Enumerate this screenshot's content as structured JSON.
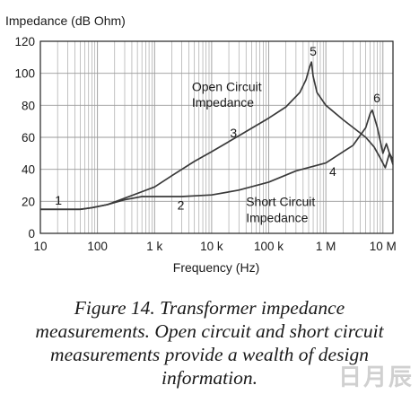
{
  "chart_data": {
    "type": "line",
    "ylabel": "Impedance (dB Ohm)",
    "xlabel": "Frequency (Hz)",
    "x_scale": "log",
    "xlim": [
      10,
      15000000
    ],
    "ylim": [
      0,
      120
    ],
    "grid": true,
    "x_ticks": [
      {
        "value": 10,
        "label": "10"
      },
      {
        "value": 100,
        "label": "100"
      },
      {
        "value": 1000,
        "label": "1 k"
      },
      {
        "value": 10000,
        "label": "10 k"
      },
      {
        "value": 100000,
        "label": "100 k"
      },
      {
        "value": 1000000,
        "label": "1 M"
      },
      {
        "value": 10000000,
        "label": "10 M"
      }
    ],
    "y_ticks": [
      0,
      20,
      40,
      60,
      80,
      100,
      120
    ],
    "series": [
      {
        "name": "Open Circuit Impedance",
        "x": [
          10,
          50,
          80,
          150,
          300,
          600,
          1000,
          2000,
          5000,
          10000,
          30000,
          100000,
          200000,
          350000,
          450000,
          520000,
          560000,
          600000,
          700000,
          1000000,
          2000000,
          5000000,
          7000000,
          9000000,
          11000000,
          13000000,
          15000000
        ],
        "y": [
          15,
          15,
          16,
          18,
          22,
          26,
          29,
          36,
          45,
          51,
          61,
          72,
          79,
          88,
          96,
          104,
          107,
          98,
          88,
          80,
          71,
          60,
          54,
          47,
          41,
          50,
          46
        ]
      },
      {
        "name": "Short Circuit Impedance",
        "x": [
          10,
          50,
          80,
          150,
          300,
          600,
          1000,
          3000,
          10000,
          30000,
          100000,
          300000,
          1000000,
          3000000,
          5000000,
          6000000,
          6500000,
          8000000,
          10000000,
          11500000,
          13000000,
          15000000
        ],
        "y": [
          15,
          15,
          16,
          18,
          21,
          23,
          23,
          23,
          24,
          27,
          32,
          39,
          44,
          55,
          66,
          75,
          77,
          66,
          50,
          56,
          50,
          43
        ]
      }
    ],
    "annotations": [
      {
        "text": "1",
        "x": 18,
        "y": 18
      },
      {
        "text": "2",
        "x": 2500,
        "y": 15
      },
      {
        "text": "3",
        "x": 21000,
        "y": 60
      },
      {
        "text": "4",
        "x": 1150000,
        "y": 36
      },
      {
        "text": "5",
        "x": 520000,
        "y": 111
      },
      {
        "text": "6",
        "x": 6800000,
        "y": 82
      },
      {
        "text": "Open Circuit",
        "x": 4500,
        "y": 89
      },
      {
        "text": "Impedance",
        "x": 4500,
        "y": 79
      },
      {
        "text": "Short Circuit",
        "x": 40000,
        "y": 17
      },
      {
        "text": "Impedance",
        "x": 40000,
        "y": 7
      }
    ]
  },
  "caption": {
    "line1": "Figure 14. Transformer impedance",
    "line2": "measurements. Open circuit and short circuit",
    "line3": "measurements provide a wealth of design",
    "line4": "information."
  },
  "colors": {
    "curve": "#3a3a3a",
    "grid": "#9a9a9a",
    "frame": "#222222"
  },
  "watermark": "日月辰"
}
